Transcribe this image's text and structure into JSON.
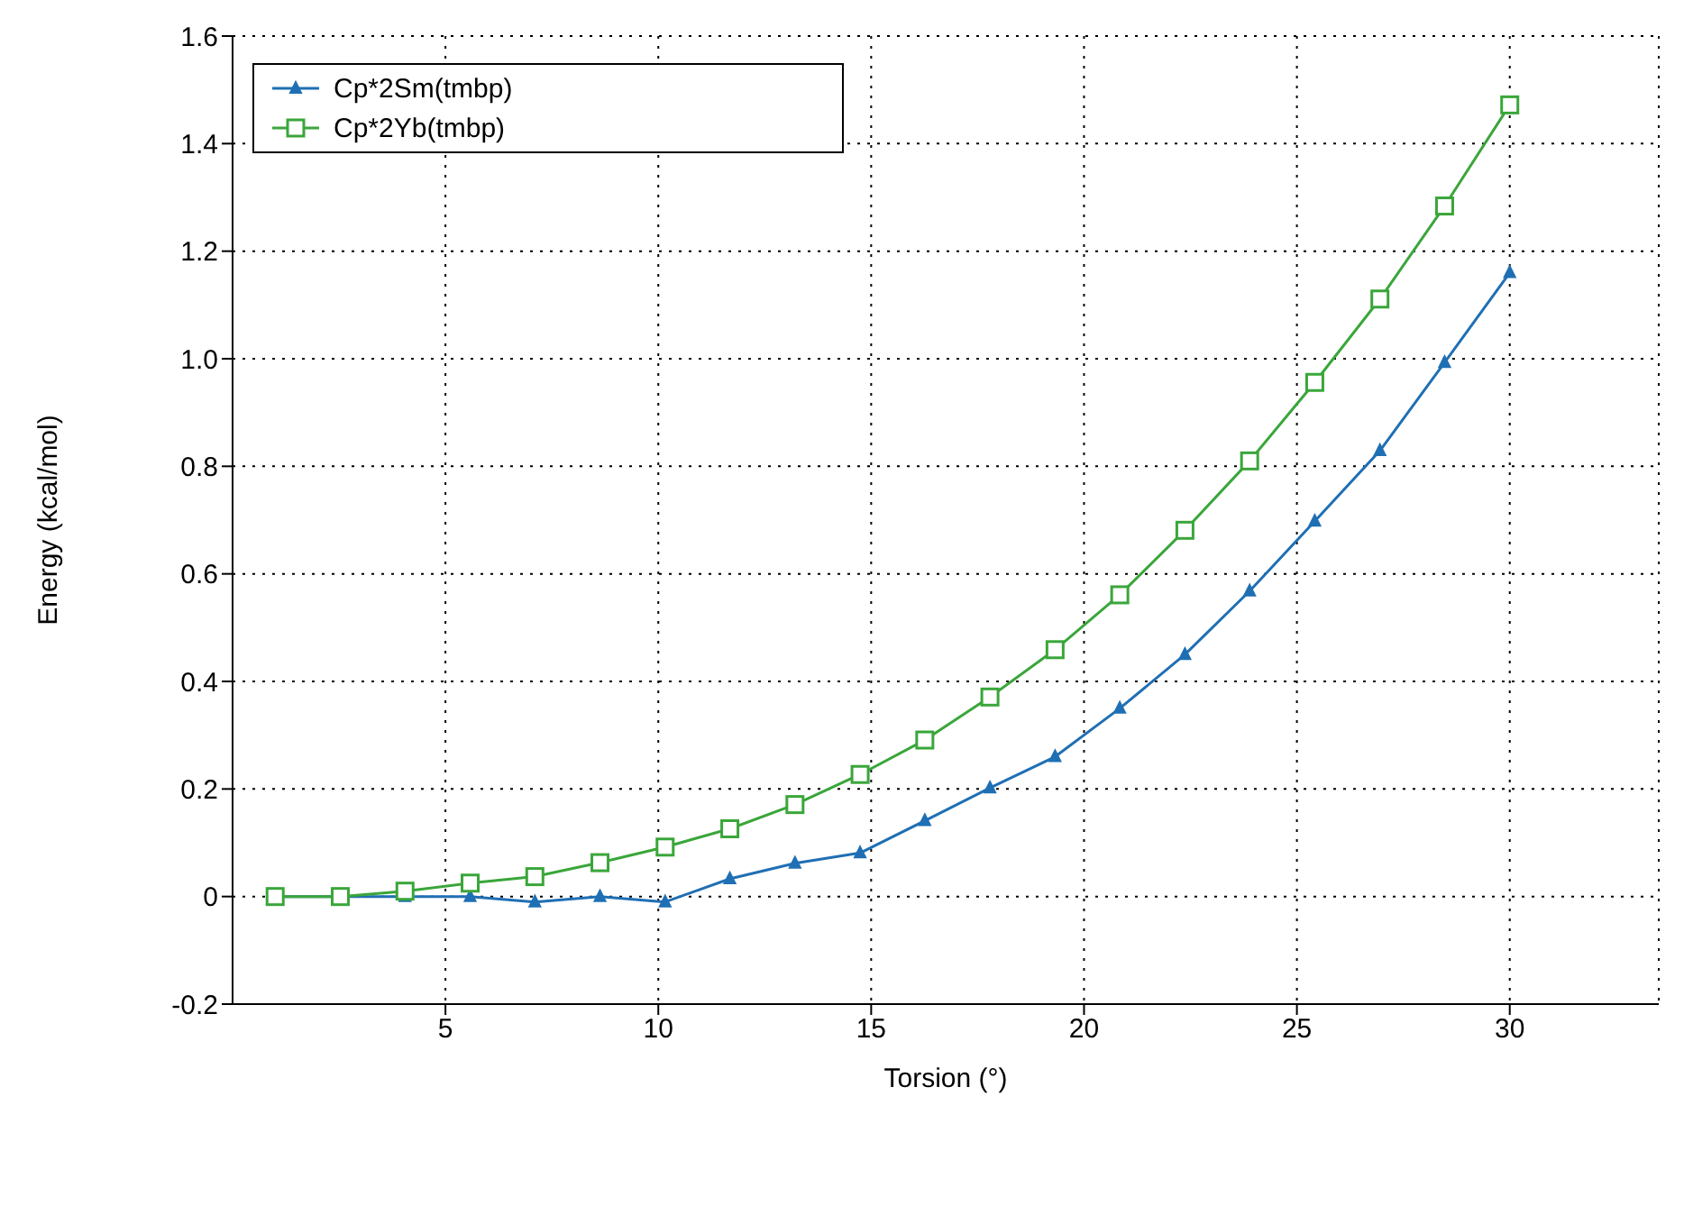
{
  "chart_data": {
    "type": "line",
    "xlabel": "Torsion (°)",
    "ylabel": "Energy (kcal/mol)",
    "x": [
      1,
      2.53,
      4.05,
      5.58,
      7.1,
      8.63,
      10.16,
      11.68,
      13.21,
      14.74,
      16.26,
      17.79,
      19.32,
      20.84,
      22.37,
      23.89,
      25.42,
      26.95,
      28.47,
      30
    ],
    "series": [
      {
        "name": "Cp*2Sm(tmbp)",
        "color": "#1f6fb4",
        "marker": "triangle",
        "values": [
          0,
          0,
          0,
          0,
          -0.01,
          0,
          -0.01,
          0.033,
          0.062,
          0.081,
          0.141,
          0.202,
          0.26,
          0.35,
          0.45,
          0.568,
          0.698,
          0.829,
          0.993,
          1.16
        ]
      },
      {
        "name": "Cp*2Yb(tmbp)",
        "color": "#3aa63a",
        "marker": "square",
        "values": [
          0,
          0,
          0.01,
          0.025,
          0.037,
          0.063,
          0.092,
          0.126,
          0.171,
          0.227,
          0.291,
          0.371,
          0.459,
          0.561,
          0.681,
          0.81,
          0.956,
          1.111,
          1.284,
          1.472
        ]
      }
    ],
    "xlim": [
      0,
      33.5
    ],
    "xticks": [
      5,
      10,
      15,
      20,
      25,
      30
    ],
    "ylim": [
      -0.2,
      1.6
    ],
    "yticks": [
      {
        "value": -0.2,
        "label": "-0.2"
      },
      0,
      0.2,
      0.4,
      0.6,
      0.8,
      {
        "value": 1,
        "label": "1.0"
      },
      1.2,
      1.4,
      1.6
    ],
    "grid": true,
    "legend": "top left",
    "line_style": "solid"
  }
}
